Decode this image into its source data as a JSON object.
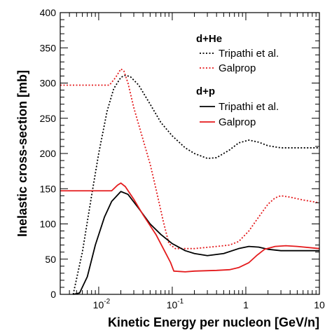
{
  "chart_data": {
    "type": "line",
    "title": "",
    "xlabel": "Kinetic Energy per nucleon [GeV/n]",
    "ylabel": "Inelastic cross-section [mb]",
    "xscale": "log",
    "xlim": [
      0.003,
      10
    ],
    "ylim": [
      0,
      400
    ],
    "grid": false,
    "legend_position": "top-right",
    "x_ticks": [
      {
        "value": 0.01,
        "base": "10",
        "exp": "-2"
      },
      {
        "value": 0.1,
        "base": "10",
        "exp": "-1"
      },
      {
        "value": 1,
        "base": "1",
        "exp": ""
      },
      {
        "value": 10,
        "base": "10",
        "exp": ""
      }
    ],
    "y_ticks": [
      0,
      50,
      100,
      150,
      200,
      250,
      300,
      350,
      400
    ],
    "legend_groups": [
      {
        "heading": "d+He",
        "entries": [
          "Tripathi et al.",
          "Galprop"
        ]
      },
      {
        "heading": "d+p",
        "entries": [
          "Tripathi et al.",
          "Galprop"
        ]
      }
    ],
    "series": [
      {
        "name": "Tripathi et al.",
        "group": "d+He",
        "color": "#000000",
        "dash": "dotted",
        "points": [
          [
            0.0045,
            0
          ],
          [
            0.006,
            60
          ],
          [
            0.008,
            140
          ],
          [
            0.01,
            200
          ],
          [
            0.013,
            260
          ],
          [
            0.016,
            292
          ],
          [
            0.02,
            308
          ],
          [
            0.023,
            311
          ],
          [
            0.027,
            309
          ],
          [
            0.035,
            297
          ],
          [
            0.05,
            270
          ],
          [
            0.07,
            244
          ],
          [
            0.1,
            225
          ],
          [
            0.15,
            208
          ],
          [
            0.2,
            200
          ],
          [
            0.3,
            193
          ],
          [
            0.4,
            194
          ],
          [
            0.6,
            205
          ],
          [
            0.8,
            215
          ],
          [
            1.1,
            219
          ],
          [
            1.5,
            216
          ],
          [
            2,
            211
          ],
          [
            3,
            208
          ],
          [
            5,
            208
          ],
          [
            10,
            208
          ]
        ]
      },
      {
        "name": "Galprop",
        "group": "d+He",
        "color": "#e41a1c",
        "dash": "dotted",
        "points": [
          [
            0.003,
            297
          ],
          [
            0.014,
            297
          ],
          [
            0.017,
            308
          ],
          [
            0.02,
            320
          ],
          [
            0.022,
            317
          ],
          [
            0.025,
            300
          ],
          [
            0.03,
            265
          ],
          [
            0.04,
            220
          ],
          [
            0.05,
            185
          ],
          [
            0.06,
            150
          ],
          [
            0.075,
            105
          ],
          [
            0.09,
            72
          ],
          [
            0.11,
            65
          ],
          [
            0.2,
            65
          ],
          [
            0.4,
            68
          ],
          [
            0.6,
            70
          ],
          [
            0.8,
            75
          ],
          [
            1.1,
            90
          ],
          [
            1.5,
            110
          ],
          [
            2,
            128
          ],
          [
            2.5,
            137
          ],
          [
            3,
            140
          ],
          [
            4,
            138
          ],
          [
            6,
            134
          ],
          [
            10,
            130
          ]
        ]
      },
      {
        "name": "Tripathi et al.",
        "group": "d+p",
        "color": "#000000",
        "dash": "solid",
        "points": [
          [
            0.0045,
            0
          ],
          [
            0.0055,
            2
          ],
          [
            0.007,
            25
          ],
          [
            0.009,
            70
          ],
          [
            0.012,
            110
          ],
          [
            0.015,
            132
          ],
          [
            0.02,
            146
          ],
          [
            0.025,
            142
          ],
          [
            0.035,
            122
          ],
          [
            0.05,
            100
          ],
          [
            0.07,
            85
          ],
          [
            0.1,
            72
          ],
          [
            0.15,
            62
          ],
          [
            0.2,
            58
          ],
          [
            0.3,
            55
          ],
          [
            0.5,
            58
          ],
          [
            0.8,
            65
          ],
          [
            1.1,
            68
          ],
          [
            1.5,
            67
          ],
          [
            2,
            64
          ],
          [
            3,
            62
          ],
          [
            5,
            62
          ],
          [
            10,
            62
          ]
        ]
      },
      {
        "name": "Galprop",
        "group": "d+p",
        "color": "#e41a1c",
        "dash": "solid",
        "points": [
          [
            0.003,
            147
          ],
          [
            0.015,
            147
          ],
          [
            0.018,
            155
          ],
          [
            0.02,
            158
          ],
          [
            0.023,
            153
          ],
          [
            0.03,
            135
          ],
          [
            0.04,
            113
          ],
          [
            0.06,
            85
          ],
          [
            0.08,
            60
          ],
          [
            0.095,
            45
          ],
          [
            0.105,
            33
          ],
          [
            0.15,
            32
          ],
          [
            0.2,
            33
          ],
          [
            0.4,
            34
          ],
          [
            0.6,
            35
          ],
          [
            0.8,
            38
          ],
          [
            1.1,
            45
          ],
          [
            1.4,
            55
          ],
          [
            1.8,
            64
          ],
          [
            2.5,
            68
          ],
          [
            3.5,
            69
          ],
          [
            5,
            68
          ],
          [
            10,
            65
          ]
        ]
      }
    ]
  }
}
